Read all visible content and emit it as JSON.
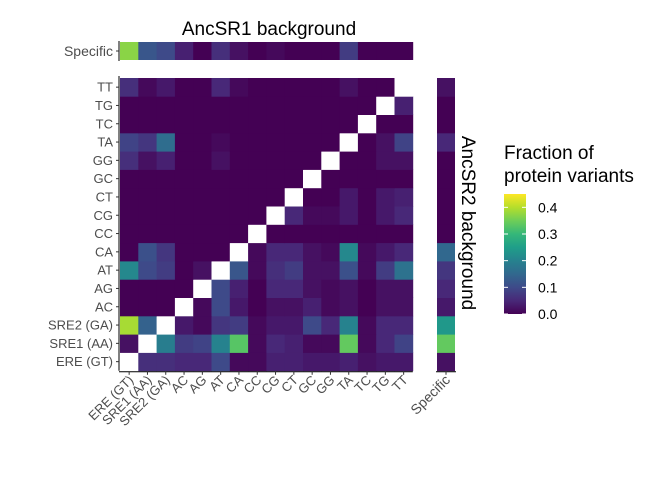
{
  "chart_data": {
    "type": "heatmap",
    "title": "AncSR1 background",
    "right_label": "AncSR2 background",
    "categories": [
      "ERE (GT)",
      "SRE1 (AA)",
      "SRE2 (GA)",
      "AC",
      "AG",
      "AT",
      "CA",
      "CC",
      "CG",
      "CT",
      "GC",
      "GG",
      "TA",
      "TC",
      "TG",
      "TT"
    ],
    "specific_label": "Specific",
    "colorbar": {
      "title_line1": "Fraction of",
      "title_line2": "protein variants",
      "ticks": [
        0.0,
        0.1,
        0.2,
        0.3,
        0.4
      ],
      "tick_labels": [
        "0.0",
        "0.1",
        "0.2",
        "0.3",
        "0.4"
      ],
      "range": [
        0,
        0.45
      ],
      "palette": [
        "#440154",
        "#482878",
        "#3e4a89",
        "#31688e",
        "#26828e",
        "#1f9e89",
        "#35b779",
        "#6ece58",
        "#b5de2b",
        "#fde725"
      ]
    },
    "matrix_note": "rows listed in categories order; matrix[r][c] is value at row category r (y axis) and column category c (x axis); null = diagonal (white)",
    "matrix": [
      [
        null,
        0.06,
        0.06,
        0.05,
        0.05,
        0.1,
        0.01,
        0.01,
        0.04,
        0.04,
        0.03,
        0.03,
        0.04,
        0.02,
        0.03,
        0.03
      ],
      [
        0.02,
        null,
        0.19,
        0.08,
        0.09,
        0.2,
        0.33,
        0.01,
        0.05,
        0.04,
        0.01,
        0.01,
        0.34,
        0.01,
        0.05,
        0.09
      ],
      [
        0.39,
        0.14,
        null,
        0.03,
        0.01,
        0.07,
        0.08,
        0.01,
        0.03,
        0.03,
        0.1,
        0.05,
        0.2,
        0.01,
        0.05,
        0.05
      ],
      [
        0.0,
        0.0,
        0.0,
        null,
        0.01,
        0.1,
        0.03,
        0.0,
        0.02,
        0.02,
        0.04,
        0.01,
        0.02,
        0.0,
        0.02,
        0.02
      ],
      [
        0.0,
        0.0,
        0.0,
        0.0,
        null,
        0.1,
        0.04,
        0.0,
        0.05,
        0.05,
        0.02,
        0.01,
        0.02,
        0.0,
        0.02,
        0.02
      ],
      [
        0.21,
        0.1,
        0.08,
        0.0,
        0.02,
        null,
        0.12,
        0.01,
        0.06,
        0.08,
        0.02,
        0.02,
        0.11,
        0.01,
        0.08,
        0.17
      ],
      [
        0.0,
        0.11,
        0.07,
        0.0,
        0.0,
        0.0,
        null,
        0.01,
        0.05,
        0.05,
        0.02,
        0.01,
        0.21,
        0.01,
        0.03,
        0.05
      ],
      [
        0.0,
        0.0,
        0.0,
        0.0,
        0.0,
        0.0,
        0.0,
        null,
        0.0,
        0.0,
        0.0,
        0.0,
        0.0,
        0.0,
        0.0,
        0.0
      ],
      [
        0.0,
        0.0,
        0.0,
        0.0,
        0.0,
        0.0,
        0.0,
        0.0,
        null,
        0.05,
        0.01,
        0.01,
        0.03,
        0.0,
        0.03,
        0.05
      ],
      [
        0.0,
        0.0,
        0.0,
        0.0,
        0.0,
        0.0,
        0.0,
        0.0,
        0.0,
        null,
        0.0,
        0.0,
        0.03,
        0.0,
        0.03,
        0.04
      ],
      [
        0.0,
        0.0,
        0.0,
        0.0,
        0.0,
        0.0,
        0.0,
        0.0,
        0.0,
        0.0,
        null,
        0.0,
        0.0,
        0.0,
        0.0,
        0.0
      ],
      [
        0.06,
        0.02,
        0.04,
        0.0,
        0.0,
        0.02,
        0.0,
        0.0,
        0.0,
        0.0,
        0.0,
        null,
        0.0,
        0.0,
        0.02,
        0.02
      ],
      [
        0.09,
        0.07,
        0.16,
        0.0,
        0.0,
        0.01,
        0.0,
        0.0,
        0.0,
        0.0,
        0.0,
        0.0,
        null,
        0.0,
        0.02,
        0.09
      ],
      [
        0.0,
        0.0,
        0.0,
        0.0,
        0.0,
        0.0,
        0.0,
        0.0,
        0.0,
        0.0,
        0.0,
        0.0,
        0.0,
        null,
        0.0,
        0.0
      ],
      [
        0.0,
        0.0,
        0.0,
        0.0,
        0.0,
        0.0,
        0.0,
        0.0,
        0.0,
        0.0,
        0.0,
        0.0,
        0.0,
        0.0,
        null,
        0.04
      ],
      [
        0.06,
        0.01,
        0.03,
        0.0,
        0.0,
        0.05,
        0.01,
        0.0,
        0.0,
        0.0,
        0.0,
        0.0,
        0.02,
        0.0,
        0.0,
        null
      ]
    ],
    "top_specific": [
      0.37,
      0.12,
      0.1,
      0.04,
      0.0,
      0.06,
      0.02,
      0.0,
      0.01,
      0.0,
      0.0,
      0.0,
      0.08,
      0.0,
      0.0,
      0.0
    ],
    "right_specific": [
      0.02,
      0.34,
      0.24,
      0.03,
      0.05,
      0.07,
      0.15,
      0.0,
      0.0,
      0.0,
      0.0,
      0.0,
      0.05,
      0.0,
      0.0,
      0.02
    ]
  }
}
